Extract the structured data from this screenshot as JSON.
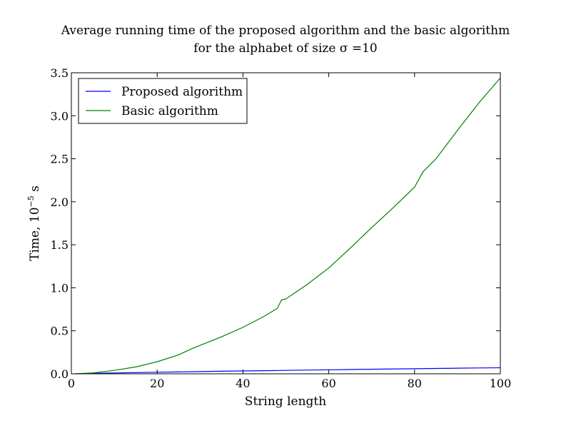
{
  "chart_data": {
    "type": "line",
    "title": "Average running time of the proposed algorithm and the basic algorithm",
    "subtitle": "for the alphabet of size σ =10",
    "xlabel": "String length",
    "ylabel": "Time, 10",
    "ylabel_exponent": "−5",
    "ylabel_unit": " s",
    "xlim": [
      0,
      100
    ],
    "ylim": [
      0,
      3.5
    ],
    "x_ticks": [
      0,
      20,
      40,
      60,
      80,
      100
    ],
    "x_tick_labels": [
      "0",
      "20",
      "40",
      "60",
      "80",
      "100"
    ],
    "y_ticks": [
      0,
      0.5,
      1.0,
      1.5,
      2.0,
      2.5,
      3.0,
      3.5
    ],
    "y_tick_labels": [
      "0.0",
      "0.5",
      "1.0",
      "1.5",
      "2.0",
      "2.5",
      "3.0",
      "3.5"
    ],
    "grid": false,
    "legend_position": "top-left",
    "x": [
      1,
      5,
      10,
      15,
      20,
      25,
      28,
      30,
      35,
      40,
      45,
      48,
      49,
      50,
      55,
      60,
      65,
      70,
      75,
      80,
      82,
      85,
      90,
      95,
      100
    ],
    "series": [
      {
        "name": "Proposed algorithm",
        "color": "#0000ff",
        "values": [
          0.0,
          0.005,
          0.01,
          0.014,
          0.018,
          0.022,
          0.024,
          0.026,
          0.03,
          0.033,
          0.036,
          0.038,
          0.039,
          0.04,
          0.043,
          0.046,
          0.05,
          0.053,
          0.056,
          0.059,
          0.06,
          0.062,
          0.065,
          0.068,
          0.07
        ]
      },
      {
        "name": "Basic algorithm",
        "color": "#008000",
        "values": [
          0.0,
          0.01,
          0.04,
          0.08,
          0.14,
          0.22,
          0.29,
          0.33,
          0.43,
          0.54,
          0.67,
          0.76,
          0.86,
          0.87,
          1.04,
          1.23,
          1.46,
          1.7,
          1.93,
          2.17,
          2.35,
          2.5,
          2.83,
          3.15,
          3.44
        ]
      }
    ]
  }
}
